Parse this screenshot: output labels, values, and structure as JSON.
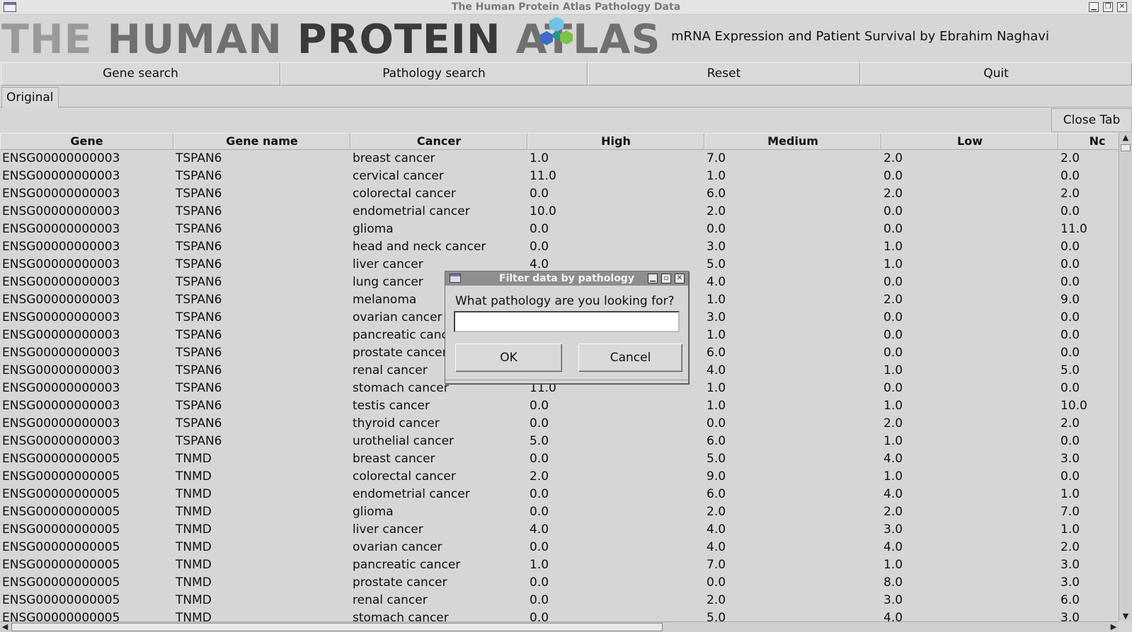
{
  "window": {
    "title": "The Human Protein Atlas Pathology Data"
  },
  "header": {
    "logo": {
      "w1": "THE",
      "w2": "HUMAN",
      "w3": "PROTEIN",
      "w4": "ATLAS"
    },
    "subtitle": "mRNA Expression and Patient Survival by Ebrahim Naghavi",
    "hex_colors": {
      "top": "#6fc3e8",
      "left": "#3f6bc4",
      "right": "#7dc24a",
      "center": "#1f9a8a"
    }
  },
  "toolbar": {
    "gene_search": "Gene search",
    "pathology_search": "Pathology search",
    "reset": "Reset",
    "quit": "Quit"
  },
  "tabs": [
    {
      "label": "Original"
    }
  ],
  "close_tab": "Close Tab",
  "table": {
    "columns": [
      "Gene",
      "Gene name",
      "Cancer",
      "High",
      "Medium",
      "Low",
      "Nc"
    ],
    "rows": [
      [
        "ENSG00000000003",
        "TSPAN6",
        "breast cancer",
        "1.0",
        "7.0",
        "2.0",
        "2.0"
      ],
      [
        "ENSG00000000003",
        "TSPAN6",
        "cervical cancer",
        "11.0",
        "1.0",
        "0.0",
        "0.0"
      ],
      [
        "ENSG00000000003",
        "TSPAN6",
        "colorectal cancer",
        "0.0",
        "6.0",
        "2.0",
        "2.0"
      ],
      [
        "ENSG00000000003",
        "TSPAN6",
        "endometrial cancer",
        "10.0",
        "2.0",
        "0.0",
        "0.0"
      ],
      [
        "ENSG00000000003",
        "TSPAN6",
        "glioma",
        "0.0",
        "0.0",
        "0.0",
        "11.0"
      ],
      [
        "ENSG00000000003",
        "TSPAN6",
        "head and neck cancer",
        "0.0",
        "3.0",
        "1.0",
        "0.0"
      ],
      [
        "ENSG00000000003",
        "TSPAN6",
        "liver cancer",
        "4.0",
        "5.0",
        "1.0",
        "0.0"
      ],
      [
        "ENSG00000000003",
        "TSPAN6",
        "lung cancer",
        "",
        "4.0",
        "0.0",
        "0.0"
      ],
      [
        "ENSG00000000003",
        "TSPAN6",
        "melanoma",
        "",
        "1.0",
        "2.0",
        "9.0"
      ],
      [
        "ENSG00000000003",
        "TSPAN6",
        "ovarian cancer",
        "",
        "3.0",
        "0.0",
        "0.0"
      ],
      [
        "ENSG00000000003",
        "TSPAN6",
        "pancreatic cancer",
        "",
        "1.0",
        "0.0",
        "0.0"
      ],
      [
        "ENSG00000000003",
        "TSPAN6",
        "prostate cancer",
        "",
        "6.0",
        "0.0",
        "0.0"
      ],
      [
        "ENSG00000000003",
        "TSPAN6",
        "renal cancer",
        "",
        "4.0",
        "1.0",
        "5.0"
      ],
      [
        "ENSG00000000003",
        "TSPAN6",
        "stomach cancer",
        "11.0",
        "1.0",
        "0.0",
        "0.0"
      ],
      [
        "ENSG00000000003",
        "TSPAN6",
        "testis cancer",
        "0.0",
        "1.0",
        "1.0",
        "10.0"
      ],
      [
        "ENSG00000000003",
        "TSPAN6",
        "thyroid cancer",
        "0.0",
        "0.0",
        "2.0",
        "2.0"
      ],
      [
        "ENSG00000000003",
        "TSPAN6",
        "urothelial cancer",
        "5.0",
        "6.0",
        "1.0",
        "0.0"
      ],
      [
        "ENSG00000000005",
        "TNMD",
        "breast cancer",
        "0.0",
        "5.0",
        "4.0",
        "3.0"
      ],
      [
        "ENSG00000000005",
        "TNMD",
        "colorectal cancer",
        "2.0",
        "9.0",
        "1.0",
        "0.0"
      ],
      [
        "ENSG00000000005",
        "TNMD",
        "endometrial cancer",
        "0.0",
        "6.0",
        "4.0",
        "1.0"
      ],
      [
        "ENSG00000000005",
        "TNMD",
        "glioma",
        "0.0",
        "2.0",
        "2.0",
        "7.0"
      ],
      [
        "ENSG00000000005",
        "TNMD",
        "liver cancer",
        "4.0",
        "4.0",
        "3.0",
        "1.0"
      ],
      [
        "ENSG00000000005",
        "TNMD",
        "ovarian cancer",
        "0.0",
        "4.0",
        "4.0",
        "2.0"
      ],
      [
        "ENSG00000000005",
        "TNMD",
        "pancreatic cancer",
        "1.0",
        "7.0",
        "1.0",
        "3.0"
      ],
      [
        "ENSG00000000005",
        "TNMD",
        "prostate cancer",
        "0.0",
        "0.0",
        "8.0",
        "3.0"
      ],
      [
        "ENSG00000000005",
        "TNMD",
        "renal cancer",
        "0.0",
        "2.0",
        "3.0",
        "6.0"
      ],
      [
        "ENSG00000000005",
        "TNMD",
        "stomach cancer",
        "0.0",
        "5.0",
        "4.0",
        "3.0"
      ]
    ]
  },
  "dialog": {
    "title": "Filter data by pathology",
    "prompt": "What pathology are you looking for?",
    "input_value": "",
    "ok": "OK",
    "cancel": "Cancel"
  }
}
